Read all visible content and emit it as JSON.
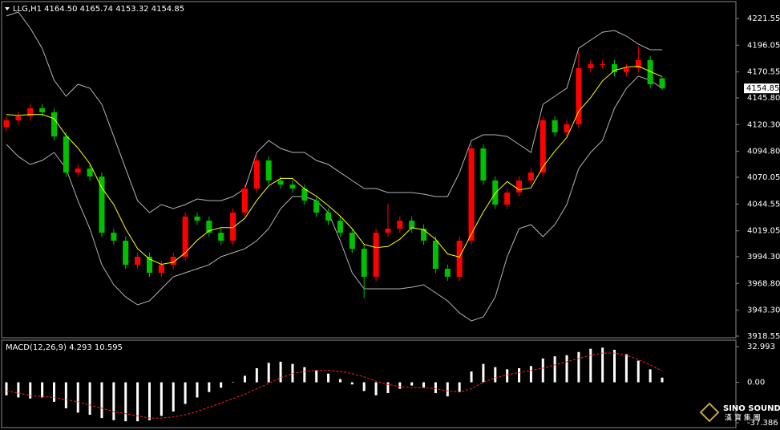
{
  "chart_data": {
    "type": "candlestick",
    "title": "LLG,H1  4164.50 4165.74 4153.32 4154.85",
    "up_color": "#ff0000",
    "down_color": "#00c000",
    "open": [
      4118.0,
      4124.4,
      4128.2,
      4135.9,
      4132.0,
      4109.0,
      4074.6,
      4078.4,
      4070.8,
      4017.2,
      4009.6,
      3986.6,
      3994.3,
      3979.0,
      3986.6,
      3994.3,
      4032.6,
      4028.7,
      4017.2,
      4009.6,
      4036.4,
      4059.3,
      4086.1,
      4067.0,
      4063.1,
      4059.3,
      4047.8,
      4036.4,
      4028.7,
      4017.2,
      4001.9,
      3975.2,
      4017.2,
      4021.1,
      4028.7,
      4021.1,
      4009.6,
      3982.8,
      3975.2,
      4009.6,
      4097.6,
      4067.0,
      4044.0,
      4055.5,
      4067.0,
      4074.6,
      4124.4,
      4112.9,
      4120.6,
      4174.1,
      4177.9,
      4177.9,
      4170.3,
      4174.1,
      4181.8,
      4164.5
    ],
    "high": [
      4128.4,
      4132.2,
      4139.9,
      4139.9,
      4136.0,
      4113.0,
      4082.4,
      4082.4,
      4074.8,
      4021.2,
      4013.6,
      3998.3,
      3998.3,
      3990.6,
      3998.3,
      4036.6,
      4036.6,
      4032.7,
      4021.2,
      4040.4,
      4063.3,
      4090.1,
      4090.1,
      4071.0,
      4067.1,
      4063.3,
      4051.8,
      4040.4,
      4032.7,
      4021.2,
      4005.9,
      4021.2,
      4045.0,
      4032.7,
      4032.7,
      4025.1,
      4013.6,
      3986.8,
      4013.6,
      4101.6,
      4101.6,
      4071.0,
      4059.5,
      4071.0,
      4078.6,
      4128.4,
      4128.4,
      4124.6,
      4190.0,
      4181.9,
      4181.9,
      4181.9,
      4178.1,
      4195.0,
      4185.8,
      4165.74
    ],
    "low": [
      4114.0,
      4120.4,
      4124.2,
      4128.0,
      4105.0,
      4070.6,
      4070.6,
      4066.8,
      4013.2,
      4005.6,
      3982.6,
      3982.6,
      3975.0,
      3975.0,
      3982.6,
      3990.3,
      4024.7,
      4013.2,
      4005.6,
      4005.6,
      4032.4,
      4055.3,
      4063.0,
      4059.1,
      4055.3,
      4043.8,
      4032.4,
      4024.7,
      4013.2,
      3997.9,
      3955.0,
      3971.2,
      4013.2,
      4017.1,
      4017.1,
      4005.6,
      3978.8,
      3971.2,
      3971.2,
      4005.6,
      4063.0,
      4040.0,
      4040.0,
      4051.5,
      4063.0,
      4070.6,
      4108.9,
      4108.9,
      4116.6,
      4170.1,
      4173.9,
      4166.3,
      4166.3,
      4170.1,
      4154.8,
      4153.32
    ],
    "close": [
      4124.4,
      4128.2,
      4135.9,
      4132.0,
      4109.0,
      4074.6,
      4078.4,
      4070.8,
      4017.2,
      4009.6,
      3986.6,
      3994.3,
      3979.0,
      3986.6,
      3994.3,
      4032.6,
      4028.7,
      4017.2,
      4009.6,
      4036.4,
      4059.3,
      4086.1,
      4067.0,
      4063.1,
      4059.3,
      4047.8,
      4036.4,
      4028.7,
      4017.2,
      4001.9,
      3975.2,
      4017.2,
      4021.1,
      4028.7,
      4021.1,
      4009.6,
      3982.8,
      3975.2,
      4009.6,
      4097.6,
      4067.0,
      4044.0,
      4055.5,
      4067.0,
      4074.6,
      4124.4,
      4112.9,
      4120.6,
      4174.1,
      4177.9,
      4177.9,
      4170.3,
      4174.1,
      4181.8,
      4158.8,
      4154.85
    ],
    "ma": {
      "color": "#ffff00",
      "values": [
        4130,
        4129,
        4130,
        4130,
        4126,
        4110,
        4098,
        4083,
        4060,
        4044,
        4021,
        4002,
        3992,
        3987,
        3989,
        3998,
        4010,
        4019,
        4022,
        4022,
        4031,
        4048,
        4062,
        4069,
        4069,
        4059,
        4052,
        4043,
        4033,
        4021,
        4006,
        4003,
        4004,
        4011,
        4022,
        4020,
        4011,
        3997,
        3994,
        4016,
        4037,
        4055,
        4066,
        4058,
        4060,
        4080,
        4095,
        4108,
        4133,
        4146,
        4162,
        4172,
        4175,
        4176,
        4171,
        4166
      ]
    },
    "bands": {
      "color": "#b4b4b4",
      "upper": [
        4223.9,
        4227.7,
        4212.4,
        4193.2,
        4162.6,
        4147.3,
        4158.8,
        4155.0,
        4139.7,
        4109.0,
        4078.4,
        4047.8,
        4036.4,
        4044.0,
        4040.2,
        4044.0,
        4049.4,
        4047.8,
        4047.8,
        4051.7,
        4059.3,
        4093.8,
        4105.2,
        4097.6,
        4093.8,
        4093.8,
        4086.1,
        4082.3,
        4074.6,
        4067.0,
        4059.3,
        4059.3,
        4055.5,
        4055.5,
        4055.5,
        4054.0,
        4051.7,
        4051.7,
        4074.6,
        4105.2,
        4110.6,
        4110.6,
        4109.0,
        4101.4,
        4093.8,
        4139.7,
        4147.3,
        4155.0,
        4193.2,
        4200.9,
        4208.5,
        4210.1,
        4204.7,
        4197.1,
        4191.7,
        4191.7
      ],
      "lower": [
        4101.4,
        4089.9,
        4082.3,
        4086.1,
        4093.8,
        4078.4,
        4047.8,
        4021.1,
        3986.6,
        3967.5,
        3956.0,
        3948.4,
        3952.2,
        3963.7,
        3975.2,
        3979.0,
        3982.8,
        3986.6,
        3994.3,
        3998.1,
        4001.9,
        4009.6,
        4021.1,
        4040.2,
        4051.7,
        4051.7,
        4047.8,
        4036.4,
        4009.6,
        3979.0,
        3963.7,
        3963.7,
        3963.7,
        3963.7,
        3965.2,
        3967.5,
        3959.9,
        3952.2,
        3940.7,
        3933.1,
        3936.9,
        3956.0,
        3994.3,
        4021.1,
        4024.9,
        4013.4,
        4024.9,
        4044.0,
        4078.4,
        4093.8,
        4105.2,
        4135.9,
        4155.0,
        4166.5,
        4162.6,
        4155.0
      ]
    },
    "ylim": [
      3918.55,
      4221.55
    ],
    "yticks": [
      4221.55,
      4196.05,
      4170.55,
      {
        "value": 4145.8,
        "label": "4145.80"
      },
      {
        "value": 4120.3,
        "label": "4120.30"
      },
      {
        "value": 4094.8,
        "label": "4094.80"
      },
      4070.05,
      4044.55,
      4019.05,
      {
        "value": 3994.3,
        "label": "3994.30"
      },
      {
        "value": 3968.8,
        "label": "3968.80"
      },
      {
        "value": 3943.3,
        "label": "3943.30"
      },
      3918.55
    ],
    "macd": {
      "label": "MACD(12,26,9) 4.293 10.595",
      "hist_color": "#ffffff",
      "signal_color": "#ff2020",
      "histogram": [
        -12,
        -14,
        -15,
        -14,
        -18,
        -24,
        -28,
        -30,
        -33,
        -35,
        -36,
        -36,
        -35,
        -31,
        -27,
        -20,
        -14,
        -9,
        -5,
        0,
        6,
        13,
        18,
        19,
        17,
        14,
        11,
        8,
        3,
        -2,
        -8,
        -12,
        -10,
        -6,
        -3,
        -5,
        -10,
        -13,
        -9,
        10,
        17,
        14,
        12,
        13,
        15,
        22,
        24,
        25,
        28,
        31,
        32,
        30,
        26,
        20,
        12,
        4.293
      ],
      "signal": [
        -8,
        -10,
        -12,
        -13,
        -14,
        -16,
        -18,
        -21,
        -24,
        -27,
        -29,
        -31,
        -33,
        -33,
        -32,
        -30,
        -27,
        -23,
        -19,
        -15,
        -11,
        -6,
        -1,
        4,
        8,
        10,
        11,
        11,
        10,
        8,
        5,
        1,
        -2,
        -4,
        -5,
        -5,
        -6,
        -8,
        -9,
        -6,
        0,
        4,
        7,
        9,
        11,
        13,
        16,
        19,
        22,
        25,
        27,
        27,
        25,
        21,
        16,
        10.595
      ],
      "ylim": [
        -37.386,
        32.993
      ],
      "yticks": [
        32.993,
        {
          "value": 0,
          "label": "0.00"
        },
        -37.386
      ]
    }
  },
  "watermark": {
    "brand": "SINO SOUND",
    "sub": "漢 寶 集 團"
  }
}
